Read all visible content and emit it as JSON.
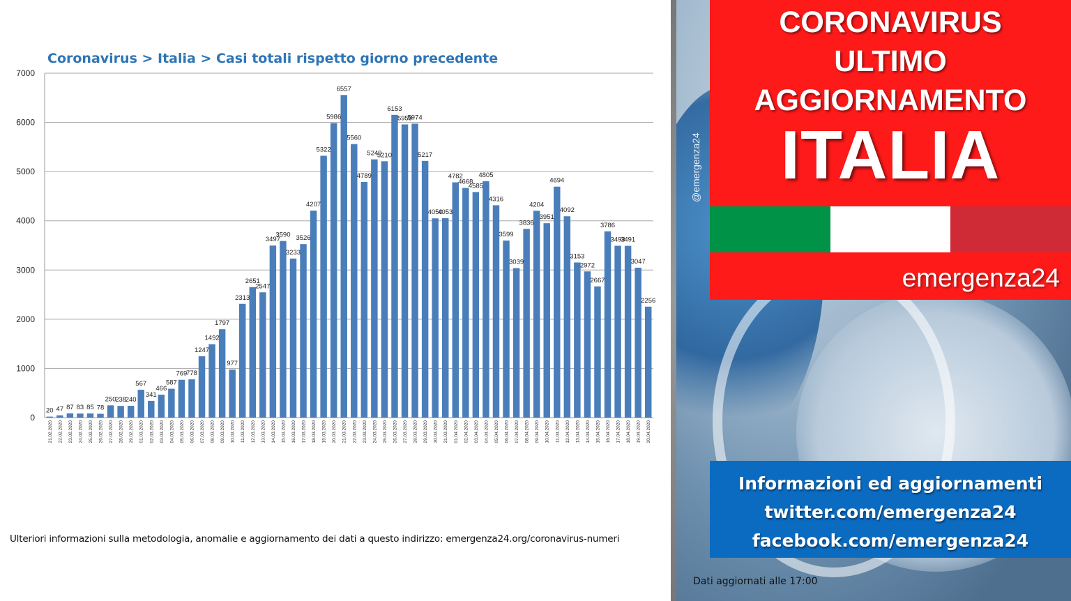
{
  "chart_data": {
    "type": "bar",
    "title": "Coronavirus > Italia > Casi totali rispetto giorno precedente",
    "ylim": [
      0,
      7000
    ],
    "yticks": [
      0,
      1000,
      2000,
      3000,
      4000,
      5000,
      6000,
      7000
    ],
    "grid": true,
    "bar_color": "#4a7ebb",
    "categories": [
      "21.02.2020",
      "22.02.2020",
      "23.02.2020",
      "24.02.2020",
      "25.02.2020",
      "26.02.2020",
      "27.02.2020",
      "28.02.2020",
      "29.02.2020",
      "01.03.2020",
      "02.03.2020",
      "03.03.2020",
      "04.03.2020",
      "05.03.2020",
      "06.03.2020",
      "07.03.2020",
      "08.03.2020",
      "09.03.2020",
      "10.03.2020",
      "11.03.2020",
      "12.03.2020",
      "13.03.2020",
      "14.03.2020",
      "15.03.2020",
      "16.03.2020",
      "17.03.2020",
      "18.03.2020",
      "19.03.2020",
      "20.03.2020",
      "21.03.2020",
      "22.03.2020",
      "23.03.2020",
      "24.03.2020",
      "25.03.2020",
      "26.03.2020",
      "27.03.2020",
      "28.03.2020",
      "29.03.2020",
      "30.03.2020",
      "31.03.2020",
      "01.04.2020",
      "02.04.2020",
      "03.04.2020",
      "04.04.2020",
      "05.04.2020",
      "06.04.2020",
      "07.04.2020",
      "08.04.2020",
      "09.04.2020",
      "10.04.2020",
      "11.04.2020",
      "12.04.2020",
      "13.04.2020",
      "14.04.2020",
      "15.04.2020",
      "16.04.2020",
      "17.04.2020",
      "18.04.2020",
      "19.04.2020",
      "20.04.2020"
    ],
    "values": [
      20,
      47,
      87,
      83,
      85,
      78,
      250,
      238,
      240,
      567,
      341,
      466,
      587,
      769,
      778,
      1247,
      1492,
      1797,
      977,
      2313,
      2651,
      2547,
      3497,
      3590,
      3233,
      3526,
      4207,
      5322,
      5986,
      6557,
      5560,
      4789,
      5249,
      5210,
      6153,
      5959,
      5974,
      5217,
      4050,
      4053,
      4782,
      4668,
      4585,
      4805,
      4316,
      3599,
      3039,
      3836,
      4204,
      3951,
      4694,
      4092,
      3153,
      2972,
      2667,
      3786,
      3493,
      3491,
      3047,
      2256
    ]
  },
  "footnote": "Ulteriori informazioni sulla metodologia, anomalie e aggiornamento dei dati a questo indirizzo: emergenza24.org/coronavirus-numeri",
  "banner": {
    "handle": "@emergenza24",
    "line1": "CORONAVIRUS",
    "line2": "ULTIMO",
    "line3": "AGGIORNAMENTO",
    "country": "ITALIA",
    "brand": "emergenza24",
    "flag_colors": [
      "#009246",
      "#ffffff",
      "#ce2b37"
    ],
    "accent_red": "#ff1a1a",
    "info_blue": "#0b6bc1"
  },
  "info": {
    "line1": "Informazioni ed aggiornamenti",
    "line2": "twitter.com/emergenza24",
    "line3": "facebook.com/emergenza24"
  },
  "updated": "Dati aggiornati alle 17:00"
}
